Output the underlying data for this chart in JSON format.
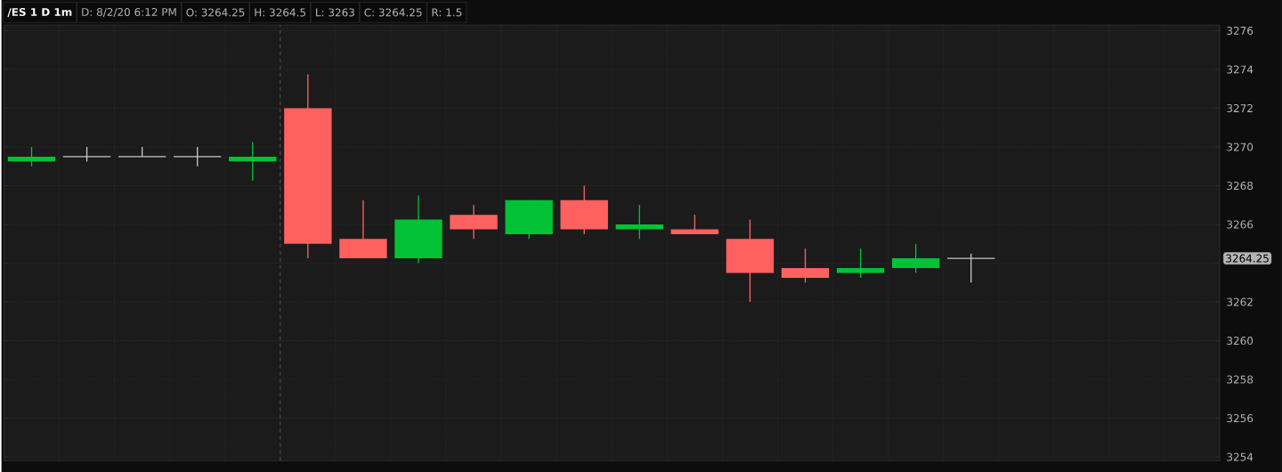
{
  "chart_data": {
    "type": "candlestick",
    "title": "/ES 1 D 1m",
    "annotations": [
      "D: 8/2/20 6:12 PM",
      "O: 3264.25",
      "H: 3264.5",
      "L: 3263",
      "C: 3264.25",
      "R: 1.5",
      "3264.25"
    ],
    "categories": [
      null,
      null,
      null,
      null,
      null,
      null,
      null,
      null,
      null,
      null,
      null,
      null,
      null,
      null,
      null,
      null,
      null,
      null,
      null,
      null,
      null,
      null
    ],
    "ohlc": [
      [
        3269.25,
        3270,
        3269,
        3269.5
      ],
      [
        3269.5,
        3270,
        3269.25,
        3269.5
      ],
      [
        3269.5,
        3270,
        3269.5,
        3269.5
      ],
      [
        3269.5,
        3270,
        3269,
        3269.5
      ],
      [
        3269.25,
        3270.25,
        3268.25,
        3269.5
      ],
      [
        3272,
        3273.75,
        3264.25,
        3265
      ],
      [
        3265.25,
        3267.25,
        3264.25,
        3264.25
      ],
      [
        3264.25,
        3267.5,
        3264,
        3266.25
      ],
      [
        3266.5,
        3267,
        3265.25,
        3265.75
      ],
      [
        3265.5,
        3267.25,
        3265.25,
        3267.25
      ],
      [
        3267.25,
        3268,
        3265.5,
        3265.75
      ],
      [
        3265.75,
        3267,
        3265.25,
        3266
      ],
      [
        3265.75,
        3266.5,
        3265.5,
        3265.5
      ],
      [
        3265.25,
        3266.25,
        3262,
        3263.5
      ],
      [
        3263.75,
        3264.75,
        3263,
        3263.25
      ],
      [
        3263.5,
        3264.75,
        3263.25,
        3263.75
      ],
      [
        3263.75,
        3265,
        3263.5,
        3264.25
      ],
      [
        3264.25,
        3264.5,
        3263,
        3264.25
      ],
      null,
      null,
      null,
      null
    ],
    "colors": [
      "#00c234",
      "#c8c8c8",
      "#c8c8c8",
      "#c8c8c8",
      "#00c234",
      "#ff6060",
      "#ff6060",
      "#00c234",
      "#ff6060",
      "#00c234",
      "#ff6060",
      "#00c234",
      "#ff6060",
      "#ff6060",
      "#ff6060",
      "#00c234",
      "#00c234",
      "#c8c8c8",
      null,
      null,
      null,
      null
    ],
    "ylim": [
      3253.8,
      3276.3
    ],
    "yticks": [
      3254,
      3256,
      3258,
      3260,
      3262,
      {
        "value": 3264,
        "label": null
      },
      3266,
      3268,
      3270,
      3272,
      3274,
      3276
    ],
    "grid": true,
    "tick_labels": "y"
  }
}
